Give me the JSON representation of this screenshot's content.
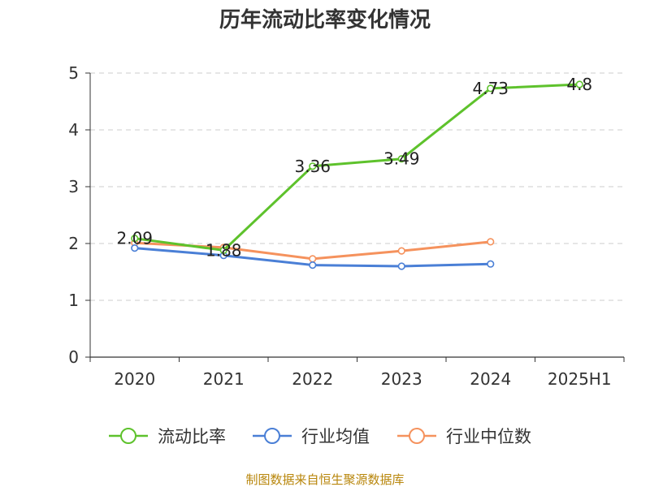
{
  "chart_data": {
    "type": "line",
    "title": "历年流动比率变化情况",
    "categories": [
      "2020",
      "2021",
      "2022",
      "2023",
      "2024",
      "2025H1"
    ],
    "ylim": [
      0,
      5
    ],
    "yticks": [
      "0",
      "1",
      "2",
      "3",
      "4",
      "5"
    ],
    "grid": true,
    "legend_position": "bottom",
    "series": [
      {
        "name": "流动比率",
        "color": "#5ec22c",
        "values": [
          2.09,
          1.88,
          3.36,
          3.49,
          4.73,
          4.8
        ],
        "labels": [
          "2.09",
          "1.88",
          "3.36",
          "3.49",
          "4.73",
          "4.8"
        ]
      },
      {
        "name": "行业均值",
        "color": "#4a7fd6",
        "values": [
          1.92,
          1.79,
          1.62,
          1.6,
          1.64,
          null
        ]
      },
      {
        "name": "行业中位数",
        "color": "#f5925d",
        "values": [
          2.01,
          1.93,
          1.73,
          1.87,
          2.03,
          null
        ]
      }
    ]
  },
  "footer": "制图数据来自恒生聚源数据库"
}
